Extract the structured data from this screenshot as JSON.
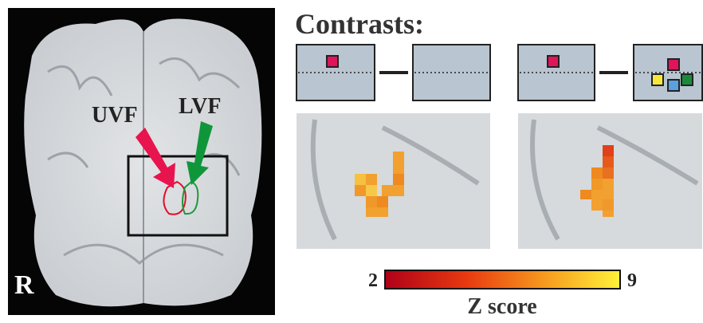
{
  "brain_panel": {
    "hemisphere_label": "R",
    "labels": [
      "UVF",
      "LVF"
    ]
  },
  "contrasts": {
    "title": "Contrasts:"
  },
  "colorbar": {
    "min": 2,
    "max": 9,
    "label": "Z score"
  }
}
